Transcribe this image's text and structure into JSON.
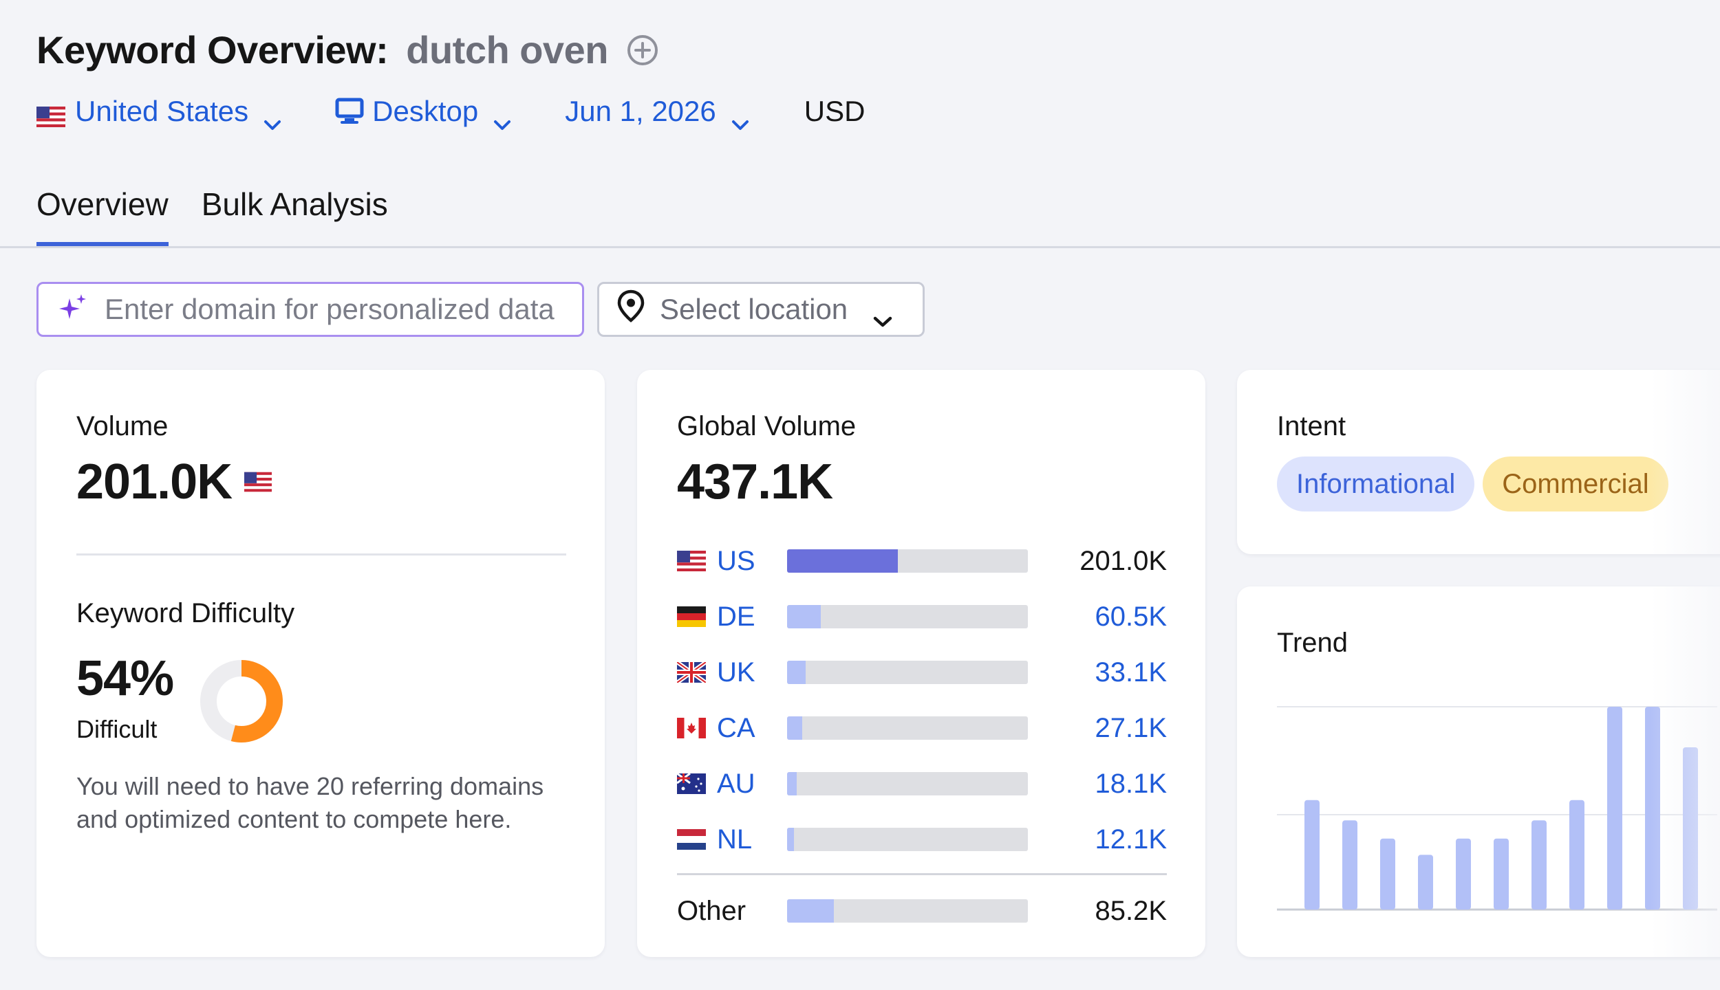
{
  "header": {
    "title": "Keyword Overview:",
    "keyword": "dutch oven"
  },
  "filters": {
    "country": "United States",
    "device": "Desktop",
    "date": "Jun 1, 2026",
    "currency": "USD"
  },
  "tabs": [
    {
      "label": "Overview",
      "active": true
    },
    {
      "label": "Bulk Analysis",
      "active": false
    }
  ],
  "domain_input": {
    "placeholder": "Enter domain for personalized data",
    "value": ""
  },
  "location_select": {
    "label": "Select location"
  },
  "volume_card": {
    "label": "Volume",
    "value": "201.0K",
    "difficulty_label": "Keyword Difficulty",
    "difficulty_value": "54%",
    "difficulty_percent": 54,
    "difficulty_level": "Difficult",
    "note": "You will need to have 20 referring domains and optimized content to compete here."
  },
  "global_volume_card": {
    "label": "Global Volume",
    "value": "437.1K",
    "rows": [
      {
        "code": "US",
        "volume": "201.0K",
        "share": 0.46
      },
      {
        "code": "DE",
        "volume": "60.5K",
        "share": 0.14
      },
      {
        "code": "UK",
        "volume": "33.1K",
        "share": 0.076
      },
      {
        "code": "CA",
        "volume": "27.1K",
        "share": 0.062
      },
      {
        "code": "AU",
        "volume": "18.1K",
        "share": 0.041
      },
      {
        "code": "NL",
        "volume": "12.1K",
        "share": 0.028
      }
    ],
    "other": {
      "label": "Other",
      "volume": "85.2K",
      "share": 0.195
    }
  },
  "intent_card": {
    "label": "Intent",
    "badges": [
      "Informational",
      "Commercial"
    ]
  },
  "trend_card": {
    "label": "Trend",
    "values": [
      0.54,
      0.44,
      0.35,
      0.27,
      0.35,
      0.35,
      0.44,
      0.54,
      1.0,
      1.0,
      0.8
    ]
  },
  "colors": {
    "link": "#1f5bd8",
    "tab_active": "#3c63d9",
    "bar_primary": "#6b70db",
    "bar_secondary": "#b2c0f7",
    "difficulty": "#ff8c1a",
    "informational_bg": "#dde3fd",
    "commercial_bg": "#fde9a6"
  }
}
